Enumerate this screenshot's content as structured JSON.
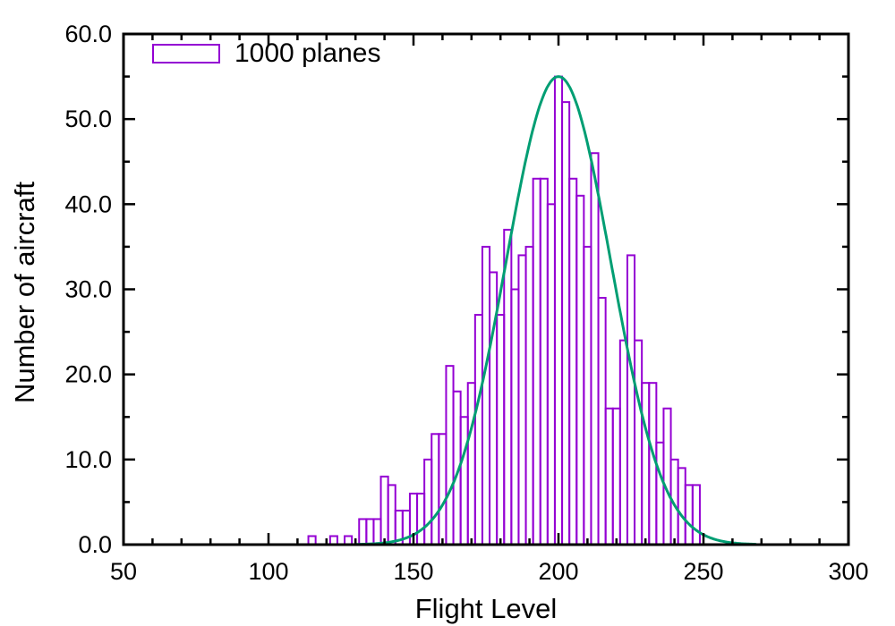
{
  "chart_data": {
    "type": "bar",
    "title": "",
    "xlabel": "Flight Level",
    "ylabel": "Number of aircraft",
    "legend": {
      "label": "1000 planes",
      "position": "top-left",
      "swatch_color": "#9400D3"
    },
    "xlim": [
      50,
      300
    ],
    "ylim": [
      0,
      60
    ],
    "x_major_ticks": [
      50,
      100,
      150,
      200,
      250,
      300
    ],
    "x_minor_tick_step": 10,
    "y_major_tick_values": [
      0,
      10,
      20,
      30,
      40,
      50,
      60
    ],
    "y_major_tick_labels": [
      "0.0",
      "10.0",
      "20.0",
      "30.0",
      "40.0",
      "50.0",
      "60.0"
    ],
    "y_minor_tick_step": 5,
    "grid": false,
    "bar_color": "#9400D3",
    "curve_color": "#009E73",
    "bin_width": 2.5,
    "histogram": {
      "series_label": "1000 planes",
      "bin_centers": [
        115,
        117.5,
        120,
        122.5,
        125,
        127.5,
        130,
        132.5,
        135,
        137.5,
        140,
        142.5,
        145,
        147.5,
        150,
        152.5,
        155,
        157.5,
        160,
        162.5,
        165,
        167.5,
        170,
        172.5,
        175,
        177.5,
        180,
        182.5,
        185,
        187.5,
        190,
        192.5,
        195,
        197.5,
        200,
        202.5,
        205,
        207.5,
        210,
        212.5,
        215,
        217.5,
        220,
        222.5,
        225,
        227.5,
        230,
        232.5,
        235,
        237.5,
        240,
        242.5,
        245,
        247.5
      ],
      "counts": [
        1,
        0,
        0,
        1,
        0,
        1,
        0,
        3,
        3,
        3,
        8,
        7,
        4,
        4,
        6,
        6,
        10,
        13,
        13,
        21,
        18,
        15,
        19,
        27,
        35,
        32,
        27,
        37,
        30,
        34,
        35,
        43,
        43,
        40,
        55,
        52,
        43,
        41,
        35,
        46,
        29,
        16,
        16,
        24,
        34,
        24,
        19,
        19,
        12,
        16,
        10,
        9,
        7,
        7
      ]
    },
    "curve": {
      "type": "gaussian",
      "amplitude": 55,
      "mean": 200,
      "sigma": 18,
      "draw_range": [
        130,
        268
      ]
    }
  }
}
